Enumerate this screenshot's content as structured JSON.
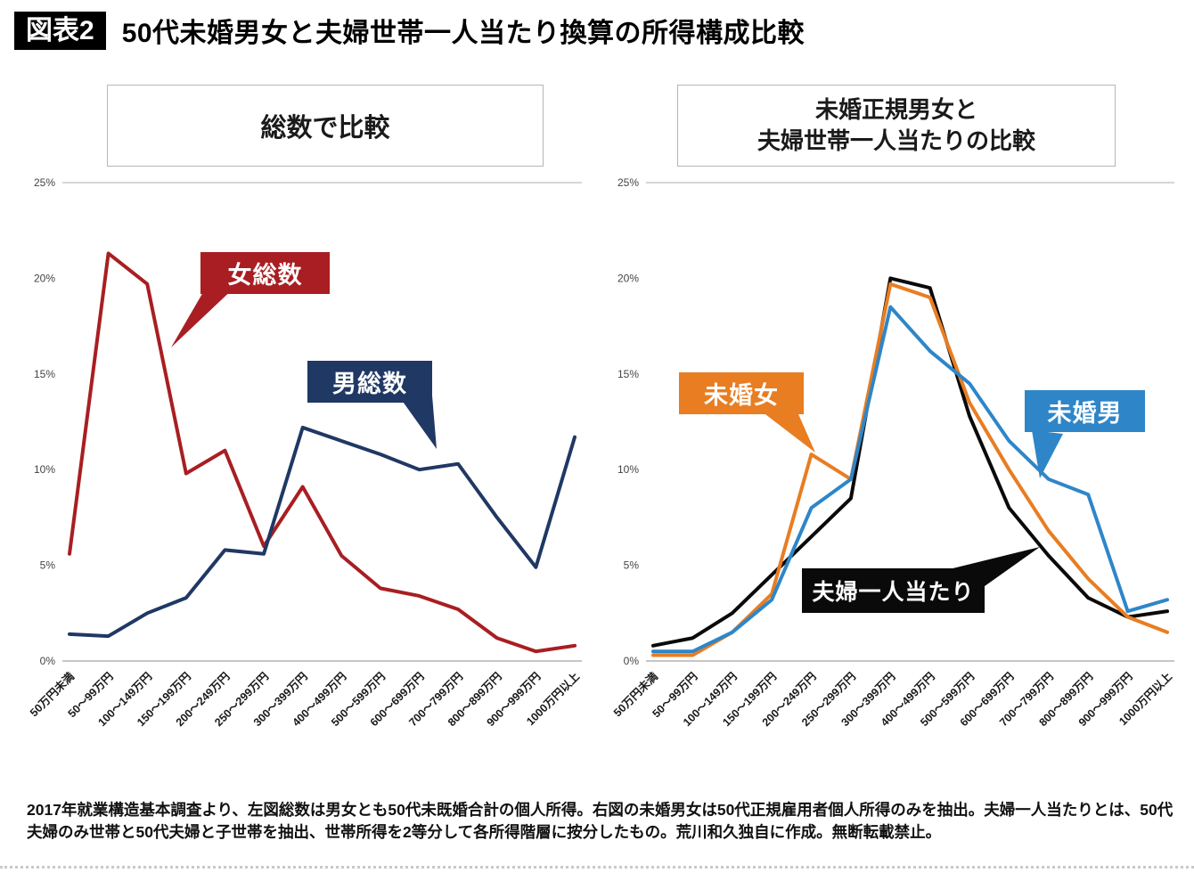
{
  "header": {
    "badge": "図表2",
    "title": "50代未婚男女と夫婦世帯一人当たり換算の所得構成比較"
  },
  "footnote": "2017年就業構造基本調査より、左図総数は男女とも50代未既婚合計の個人所得。右図の未婚男女は50代正規雇用者個人所得のみを抽出。夫婦一人当たりとは、50代夫婦のみ世帯と50代夫婦と子世帯を抽出、世帯所得を2等分して各所得階層に按分したもの。荒川和久独自に作成。無断転載禁止。",
  "chart_data": [
    {
      "type": "line",
      "title": "総数で比較",
      "categories": [
        "50万円未満",
        "50〜99万円",
        "100〜149万円",
        "150〜199万円",
        "200〜249万円",
        "250〜299万円",
        "300〜399万円",
        "400〜499万円",
        "500〜599万円",
        "600〜699万円",
        "700〜799万円",
        "800〜899万円",
        "900〜999万円",
        "1000万円以上"
      ],
      "ylim": [
        0,
        25
      ],
      "yticks": [
        "0%",
        "5%",
        "10%",
        "15%",
        "20%",
        "25%"
      ],
      "grid": false,
      "legend": "callout-labels",
      "series": [
        {
          "name": "女総数",
          "color": "#a81e22",
          "values": [
            5.6,
            21.3,
            19.7,
            9.8,
            11.0,
            6.0,
            9.1,
            5.5,
            3.8,
            3.4,
            2.7,
            1.2,
            0.5,
            0.8
          ]
        },
        {
          "name": "男総数",
          "color": "#1f3864",
          "values": [
            1.4,
            1.3,
            2.5,
            3.3,
            5.8,
            5.6,
            12.2,
            11.5,
            10.8,
            10.0,
            10.3,
            7.5,
            4.9,
            11.7
          ]
        }
      ]
    },
    {
      "type": "line",
      "title": "未婚正規男女と\n夫婦世帯一人当たりの比較",
      "categories": [
        "50万円未満",
        "50〜99万円",
        "100〜149万円",
        "150〜199万円",
        "200〜249万円",
        "250〜299万円",
        "300〜399万円",
        "400〜499万円",
        "500〜599万円",
        "600〜699万円",
        "700〜799万円",
        "800〜899万円",
        "900〜999万円",
        "1000万円以上"
      ],
      "ylim": [
        0,
        25
      ],
      "yticks": [
        "0%",
        "5%",
        "10%",
        "15%",
        "20%",
        "25%"
      ],
      "grid": false,
      "legend": "callout-labels",
      "series": [
        {
          "name": "夫婦一人当たり",
          "color": "#0a0a0a",
          "values": [
            0.8,
            1.2,
            2.5,
            4.5,
            6.5,
            8.5,
            20.0,
            19.5,
            12.8,
            8.0,
            5.5,
            3.3,
            2.3,
            2.6
          ]
        },
        {
          "name": "未婚女",
          "color": "#e87d22",
          "values": [
            0.3,
            0.3,
            1.5,
            3.5,
            10.8,
            9.5,
            19.7,
            19.0,
            13.5,
            10.0,
            6.8,
            4.3,
            2.3,
            1.5
          ]
        },
        {
          "name": "未婚男",
          "color": "#2e86c8",
          "values": [
            0.5,
            0.5,
            1.5,
            3.2,
            8.0,
            9.5,
            18.5,
            16.2,
            14.5,
            11.5,
            9.5,
            8.7,
            2.6,
            3.2
          ]
        }
      ]
    }
  ]
}
